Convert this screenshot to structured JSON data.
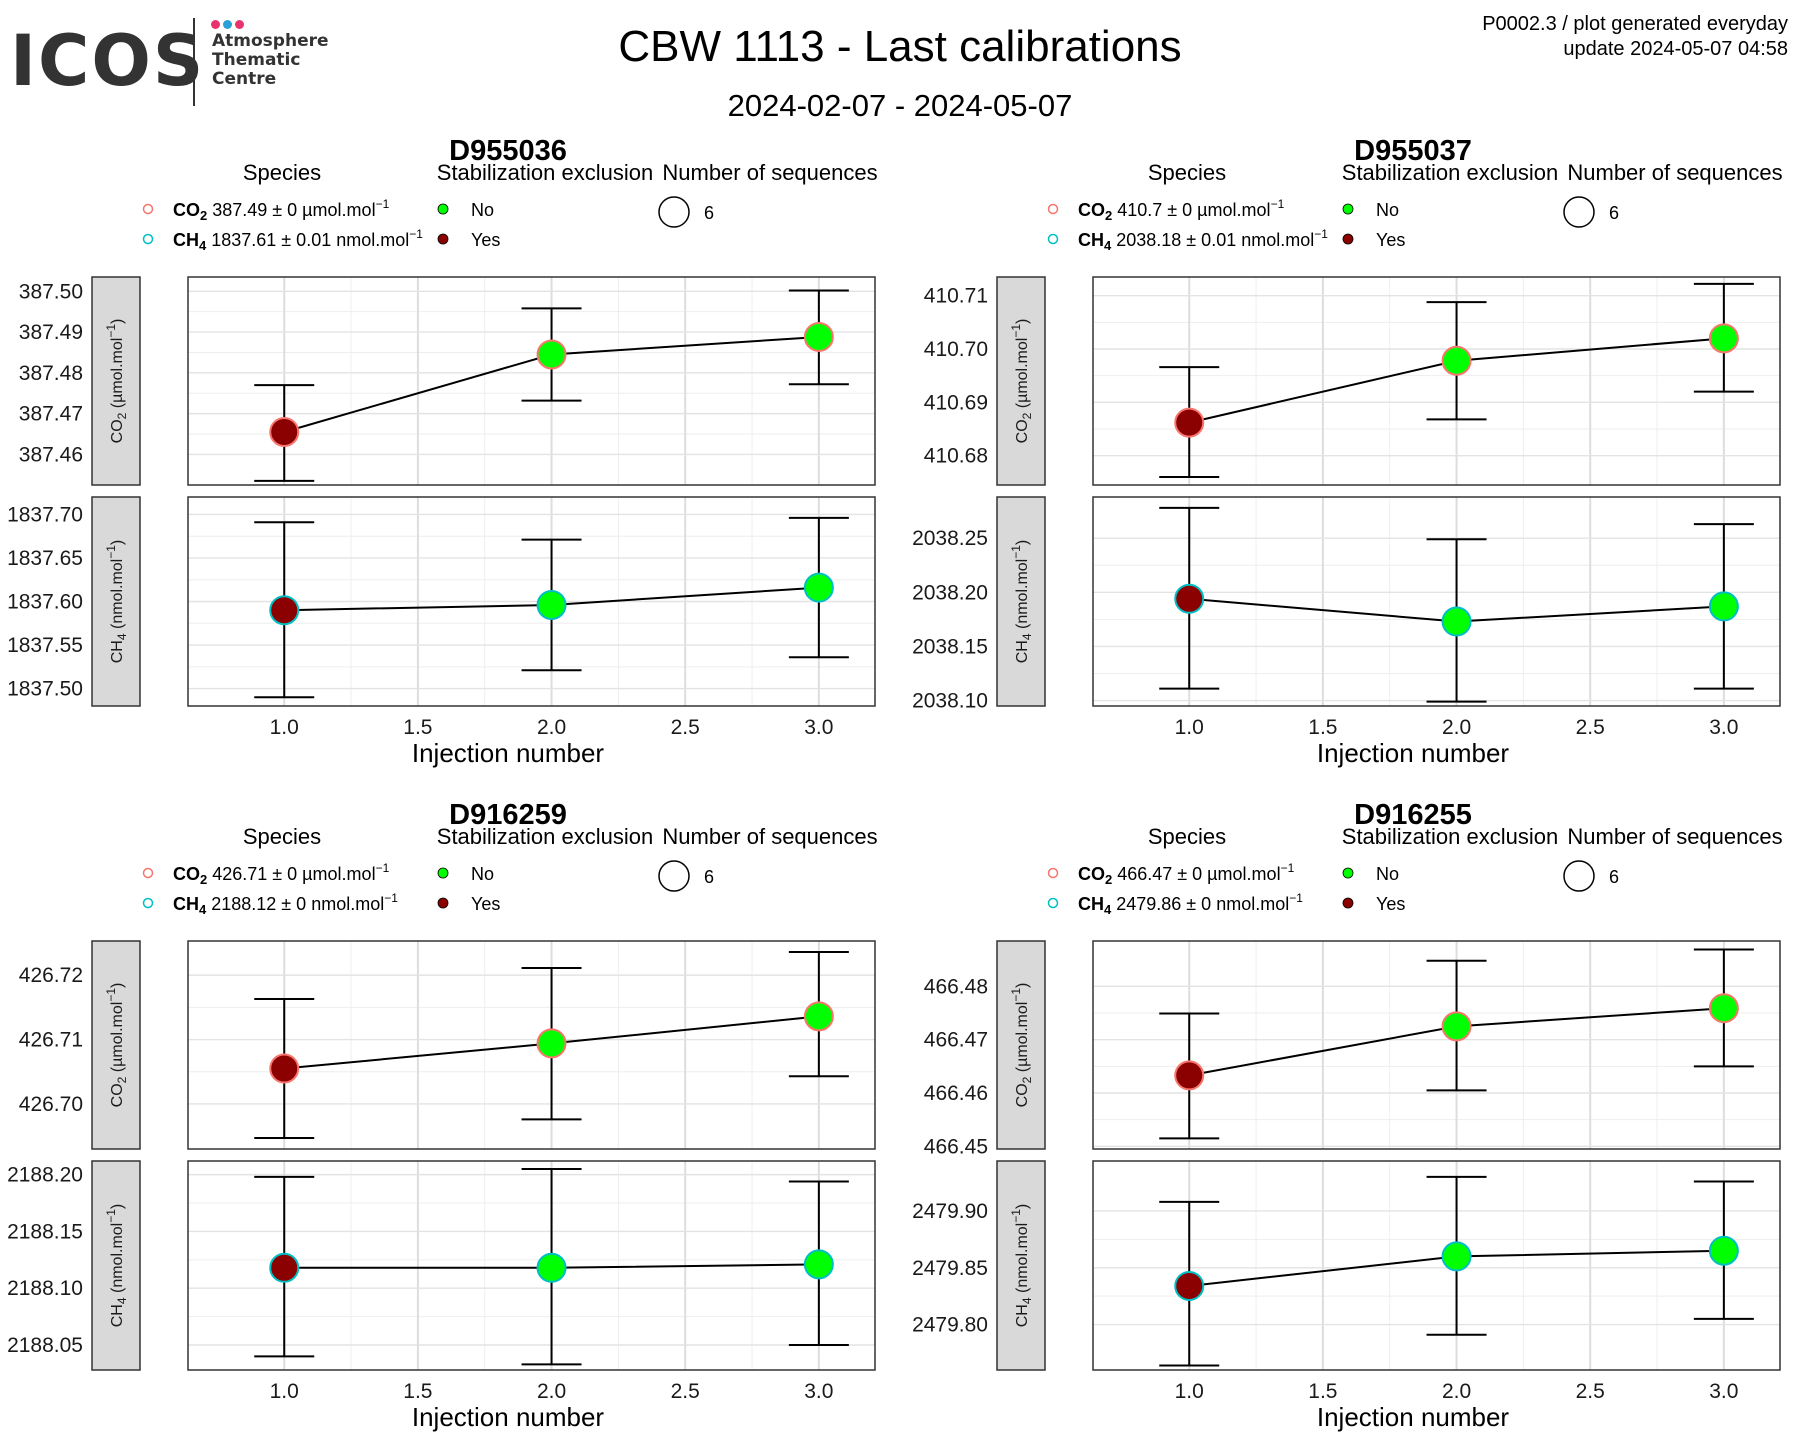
{
  "header": {
    "logo_text": "ICOS",
    "logo_lines": [
      "Atmosphere",
      "Thematic",
      "Centre"
    ],
    "title": "CBW 1113 - Last calibrations",
    "subtitle": "2024-02-07 - 2024-05-07",
    "note_line1": "P0002.3 / plot generated everyday",
    "note_line2": "update  2024-05-07 04:58"
  },
  "colors": {
    "co2_outline": "#f8766d",
    "ch4_outline": "#00bfc4",
    "not_excluded": "#00ff00",
    "excluded": "#8b0000",
    "logo_dots": [
      "#e8336d",
      "#2a9fd8",
      "#e8336d"
    ]
  },
  "legend": {
    "species_title": "Species",
    "stab_title": "Stabilization exclusion",
    "nseq_title": "Number of sequences",
    "stab_no": "No",
    "stab_yes": "Yes"
  },
  "chart_data": [
    {
      "type": "scatter",
      "title": "D955036",
      "xlabel": "Injection number",
      "x": [
        1,
        2,
        3
      ],
      "xlim": [
        0.64,
        3.21
      ],
      "xticks": [
        "1.0",
        "1.5",
        "2.0",
        "2.5",
        "3.0"
      ],
      "number_of_sequences": "6",
      "species_labels": [
        {
          "name": "CO",
          "sub": "2",
          "value": " 387.49 ± 0 µmol.mol",
          "sup": "−1"
        },
        {
          "name": "CH",
          "sub": "4",
          "value": " 1837.61 ± 0.01 nmol.mol",
          "sup": "−1"
        }
      ],
      "panels": [
        {
          "species": "CO2",
          "strip_label": "CO2 (µmol.mol−1)",
          "ylim": [
            387.4525,
            387.5035
          ],
          "yticks": [
            "387.46",
            "387.47",
            "387.48",
            "387.49",
            "387.50"
          ],
          "y": [
            387.4655,
            387.4845,
            387.4888
          ],
          "err_low": [
            387.4535,
            387.4732,
            387.4772
          ],
          "err_high": [
            387.477,
            387.4958,
            387.5002
          ],
          "excluded": [
            true,
            false,
            false
          ]
        },
        {
          "species": "CH4",
          "strip_label": "CH4 (nmol.mol−1)",
          "ylim": [
            1837.48,
            1837.72
          ],
          "yticks": [
            "1837.50",
            "1837.55",
            "1837.60",
            "1837.65",
            "1837.70"
          ],
          "y": [
            1837.59,
            1837.596,
            1837.616
          ],
          "err_low": [
            1837.49,
            1837.521,
            1837.536
          ],
          "err_high": [
            1837.691,
            1837.671,
            1837.696
          ],
          "excluded": [
            true,
            false,
            false
          ]
        }
      ]
    },
    {
      "type": "scatter",
      "title": "D955037",
      "xlabel": "Injection number",
      "x": [
        1,
        2,
        3
      ],
      "xlim": [
        0.64,
        3.21
      ],
      "xticks": [
        "1.0",
        "1.5",
        "2.0",
        "2.5",
        "3.0"
      ],
      "number_of_sequences": "6",
      "species_labels": [
        {
          "name": "CO",
          "sub": "2",
          "value": " 410.7 ± 0 µmol.mol",
          "sup": "−1"
        },
        {
          "name": "CH",
          "sub": "4",
          "value": " 2038.18 ± 0.01 nmol.mol",
          "sup": "−1"
        }
      ],
      "panels": [
        {
          "species": "CO2",
          "strip_label": "CO2 (µmol.mol−1)",
          "ylim": [
            410.6745,
            410.7135
          ],
          "yticks": [
            "410.68",
            "410.69",
            "410.70",
            "410.71"
          ],
          "y": [
            410.6862,
            410.6978,
            410.702
          ],
          "err_low": [
            410.676,
            410.6868,
            410.692
          ],
          "err_high": [
            410.6966,
            410.7088,
            410.7122
          ],
          "excluded": [
            true,
            false,
            false
          ]
        },
        {
          "species": "CH4",
          "strip_label": "CH4 (nmol.mol−1)",
          "ylim": [
            2038.095,
            2038.288
          ],
          "yticks": [
            "2038.10",
            "2038.15",
            "2038.20",
            "2038.25"
          ],
          "y": [
            2038.194,
            2038.173,
            2038.187
          ],
          "err_low": [
            2038.111,
            2038.099,
            2038.111
          ],
          "err_high": [
            2038.278,
            2038.249,
            2038.263
          ],
          "excluded": [
            true,
            false,
            false
          ]
        }
      ]
    },
    {
      "type": "scatter",
      "title": "D916259",
      "xlabel": "Injection number",
      "x": [
        1,
        2,
        3
      ],
      "xlim": [
        0.64,
        3.21
      ],
      "xticks": [
        "1.0",
        "1.5",
        "2.0",
        "2.5",
        "3.0"
      ],
      "number_of_sequences": "6",
      "species_labels": [
        {
          "name": "CO",
          "sub": "2",
          "value": " 426.71 ± 0 µmol.mol",
          "sup": "−1"
        },
        {
          "name": "CH",
          "sub": "4",
          "value": " 2188.12 ± 0 nmol.mol",
          "sup": "−1"
        }
      ],
      "panels": [
        {
          "species": "CO2",
          "strip_label": "CO2 (µmol.mol−1)",
          "ylim": [
            426.693,
            426.7253
          ],
          "yticks": [
            "426.70",
            "426.71",
            "426.72"
          ],
          "y": [
            426.7055,
            426.7094,
            426.7136
          ],
          "err_low": [
            426.6947,
            426.6976,
            426.7043
          ],
          "err_high": [
            426.7163,
            426.7211,
            426.7236
          ],
          "excluded": [
            true,
            false,
            false
          ]
        },
        {
          "species": "CH4",
          "strip_label": "CH4 (nmol.mol−1)",
          "ylim": [
            2188.028,
            2188.212
          ],
          "yticks": [
            "2188.05",
            "2188.10",
            "2188.15",
            "2188.20"
          ],
          "y": [
            2188.118,
            2188.118,
            2188.121
          ],
          "err_low": [
            2188.04,
            2188.033,
            2188.05
          ],
          "err_high": [
            2188.198,
            2188.205,
            2188.194
          ],
          "excluded": [
            true,
            false,
            false
          ]
        }
      ]
    },
    {
      "type": "scatter",
      "title": "D916255",
      "xlabel": "Injection number",
      "x": [
        1,
        2,
        3
      ],
      "xlim": [
        0.64,
        3.21
      ],
      "xticks": [
        "1.0",
        "1.5",
        "2.0",
        "2.5",
        "3.0"
      ],
      "number_of_sequences": "6",
      "species_labels": [
        {
          "name": "CO",
          "sub": "2",
          "value": " 466.47 ± 0 µmol.mol",
          "sup": "−1"
        },
        {
          "name": "CH",
          "sub": "4",
          "value": " 2479.86 ± 0 nmol.mol",
          "sup": "−1"
        }
      ],
      "panels": [
        {
          "species": "CO2",
          "strip_label": "CO2 (µmol.mol−1)",
          "ylim": [
            466.4495,
            466.4885
          ],
          "yticks": [
            "466.45",
            "466.46",
            "466.47",
            "466.48"
          ],
          "y": [
            466.4633,
            466.4725,
            466.4759
          ],
          "err_low": [
            466.4515,
            466.4605,
            466.465
          ],
          "err_high": [
            466.4749,
            466.4848,
            466.4869
          ],
          "excluded": [
            true,
            false,
            false
          ]
        },
        {
          "species": "CH4",
          "strip_label": "CH4 (nmol.mol−1)",
          "ylim": [
            2479.76,
            2479.944
          ],
          "yticks": [
            "2479.80",
            "2479.85",
            "2479.90"
          ],
          "y": [
            2479.834,
            2479.86,
            2479.865
          ],
          "err_low": [
            2479.764,
            2479.791,
            2479.805
          ],
          "err_high": [
            2479.908,
            2479.93,
            2479.926
          ],
          "excluded": [
            true,
            false,
            false
          ]
        }
      ]
    }
  ]
}
